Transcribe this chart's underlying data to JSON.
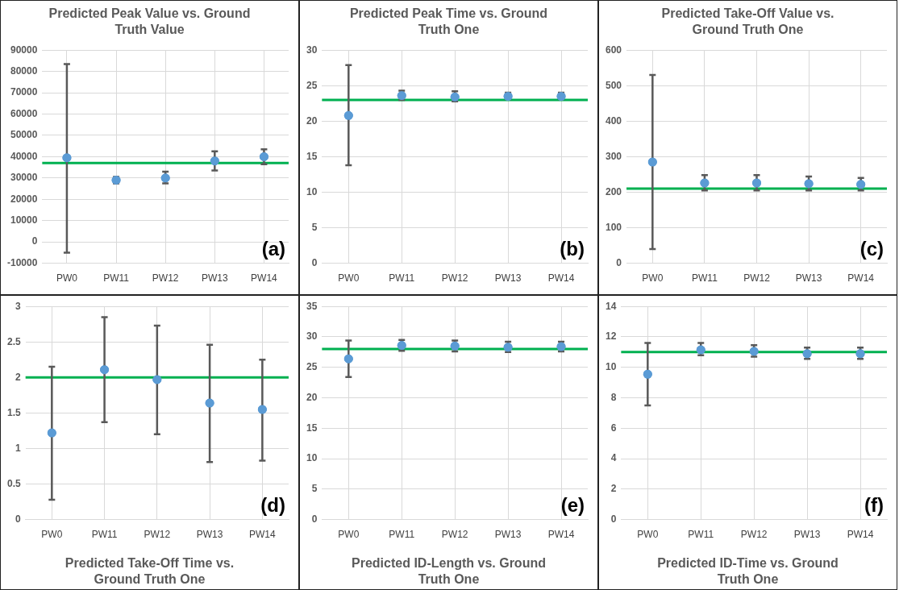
{
  "chart_data": [
    {
      "type": "scatter",
      "title": "Predicted Peak Value vs. Ground Truth Value",
      "categories": [
        "PW0",
        "PW11",
        "PW12",
        "PW13",
        "PW14"
      ],
      "values": [
        39500,
        29000,
        30000,
        38000,
        40000
      ],
      "errors": [
        [
          -5000,
          83500
        ],
        [
          27500,
          30500
        ],
        [
          27500,
          33000
        ],
        [
          33500,
          42500
        ],
        [
          36500,
          43500
        ]
      ],
      "color": "#5b9bd5",
      "marker": "circle",
      "ylim": [
        -10000,
        90000
      ],
      "yticks": [
        -10000,
        0,
        10000,
        20000,
        30000,
        40000,
        50000,
        60000,
        70000,
        80000,
        90000
      ],
      "grid": true,
      "ref_lines": [
        {
          "axis": "y",
          "value": 37000,
          "color": "#00b050"
        }
      ],
      "annotations": [
        "(a)"
      ]
    },
    {
      "type": "scatter",
      "title": "Predicted Peak Time vs. Ground Truth One",
      "categories": [
        "PW0",
        "PW11",
        "PW12",
        "PW13",
        "PW14"
      ],
      "values": [
        20.8,
        23.6,
        23.4,
        23.5,
        23.5
      ],
      "errors": [
        [
          13.8,
          27.9
        ],
        [
          23,
          24.3
        ],
        [
          22.8,
          24.2
        ],
        [
          23.1,
          24
        ],
        [
          23.1,
          24
        ]
      ],
      "color": "#5b9bd5",
      "marker": "circle",
      "ylim": [
        0,
        30
      ],
      "yticks": [
        0,
        5,
        10,
        15,
        20,
        25,
        30
      ],
      "grid": true,
      "ref_lines": [
        {
          "axis": "y",
          "value": 23,
          "color": "#00b050"
        }
      ],
      "annotations": [
        "(b)"
      ]
    },
    {
      "type": "scatter",
      "title": "Predicted Take-Off Value vs. Ground Truth One",
      "categories": [
        "PW0",
        "PW11",
        "PW12",
        "PW13",
        "PW14"
      ],
      "values": [
        285,
        226,
        226,
        224,
        222
      ],
      "errors": [
        [
          40,
          530
        ],
        [
          205,
          248
        ],
        [
          205,
          248
        ],
        [
          205,
          244
        ],
        [
          205,
          240
        ]
      ],
      "color": "#5b9bd5",
      "marker": "circle",
      "ylim": [
        0,
        600
      ],
      "yticks": [
        0,
        100,
        200,
        300,
        400,
        500,
        600
      ],
      "grid": true,
      "ref_lines": [
        {
          "axis": "y",
          "value": 210,
          "color": "#00b050"
        }
      ],
      "annotations": [
        "(c)"
      ]
    },
    {
      "type": "scatter",
      "title": "Predicted Take-Off Time vs. Ground Truth One",
      "categories": [
        "PW0",
        "PW11",
        "PW12",
        "PW13",
        "PW14"
      ],
      "values": [
        1.22,
        2.11,
        1.97,
        1.64,
        1.55
      ],
      "errors": [
        [
          0.28,
          2.15
        ],
        [
          1.37,
          2.85
        ],
        [
          1.2,
          2.73
        ],
        [
          0.81,
          2.46
        ],
        [
          0.83,
          2.25
        ]
      ],
      "color": "#5b9bd5",
      "marker": "circle",
      "ylim": [
        0,
        3
      ],
      "yticks": [
        0,
        0.5,
        1,
        1.5,
        2,
        2.5,
        3
      ],
      "grid": true,
      "ref_lines": [
        {
          "axis": "y",
          "value": 2,
          "color": "#00b050"
        }
      ],
      "annotations": [
        "(d)"
      ]
    },
    {
      "type": "scatter",
      "title": "Predicted ID-Length vs. Ground Truth One",
      "categories": [
        "PW0",
        "PW11",
        "PW12",
        "PW13",
        "PW14"
      ],
      "values": [
        26.4,
        28.6,
        28.5,
        28.3,
        28.4
      ],
      "errors": [
        [
          23.4,
          29.4
        ],
        [
          27.7,
          29.5
        ],
        [
          27.6,
          29.4
        ],
        [
          27.5,
          29.2
        ],
        [
          27.6,
          29.2
        ]
      ],
      "color": "#5b9bd5",
      "marker": "circle",
      "ylim": [
        0,
        35
      ],
      "yticks": [
        0,
        5,
        10,
        15,
        20,
        25,
        30,
        35
      ],
      "grid": true,
      "ref_lines": [
        {
          "axis": "y",
          "value": 28,
          "color": "#00b050"
        }
      ],
      "annotations": [
        "(e)"
      ]
    },
    {
      "type": "scatter",
      "title": "Predicted ID-Time vs. Ground Truth One",
      "categories": [
        "PW0",
        "PW11",
        "PW12",
        "PW13",
        "PW14"
      ],
      "values": [
        9.55,
        11.15,
        11.05,
        10.9,
        10.9
      ],
      "errors": [
        [
          7.5,
          11.6
        ],
        [
          10.8,
          11.6
        ],
        [
          10.7,
          11.45
        ],
        [
          10.55,
          11.3
        ],
        [
          10.55,
          11.3
        ]
      ],
      "color": "#5b9bd5",
      "marker": "circle",
      "ylim": [
        0,
        14
      ],
      "yticks": [
        0,
        2,
        4,
        6,
        8,
        10,
        12,
        14
      ],
      "grid": true,
      "ref_lines": [
        {
          "axis": "y",
          "value": 11,
          "color": "#00b050"
        }
      ],
      "annotations": [
        "(f)"
      ]
    }
  ]
}
